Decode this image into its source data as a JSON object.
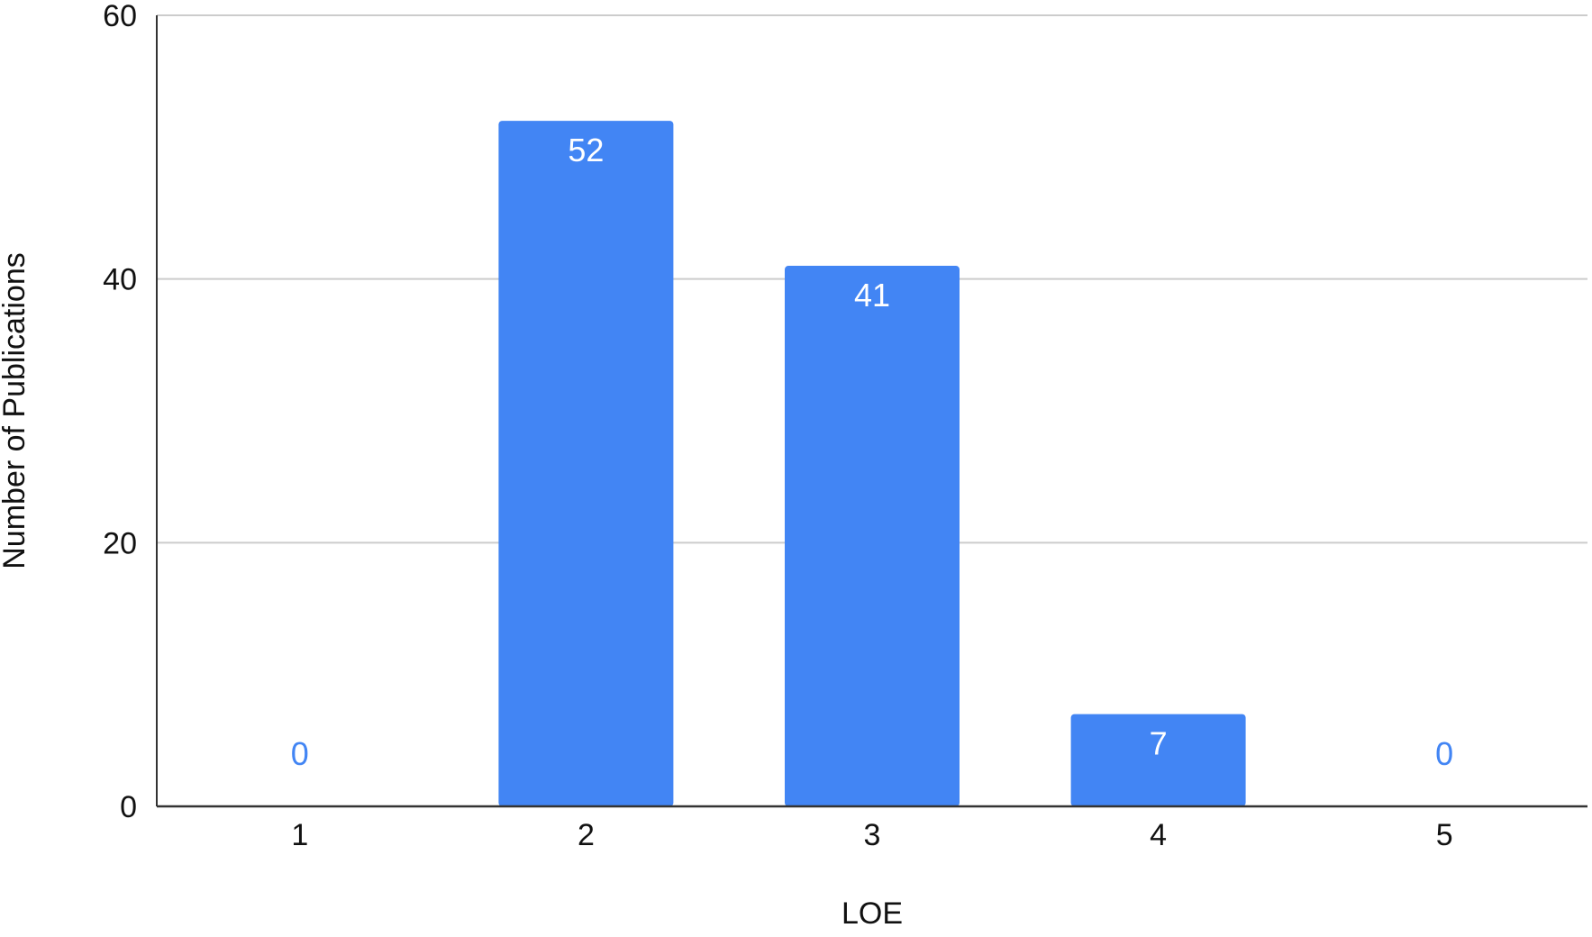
{
  "chart_data": {
    "type": "bar",
    "title": "",
    "xlabel": "LOE",
    "ylabel": "Number of Publications",
    "categories": [
      "1",
      "2",
      "3",
      "4",
      "5"
    ],
    "values": [
      0,
      52,
      41,
      7,
      0
    ],
    "value_labels": [
      "0",
      "52",
      "41",
      "7",
      "0"
    ],
    "ylim": [
      0,
      60
    ],
    "yticks": [
      "0",
      "20",
      "40",
      "60"
    ],
    "grid": true,
    "legend": "none",
    "bar_color": "#4285F4",
    "label_color_inside": "#FFFFFF",
    "label_color_outside": "#4285F4"
  }
}
